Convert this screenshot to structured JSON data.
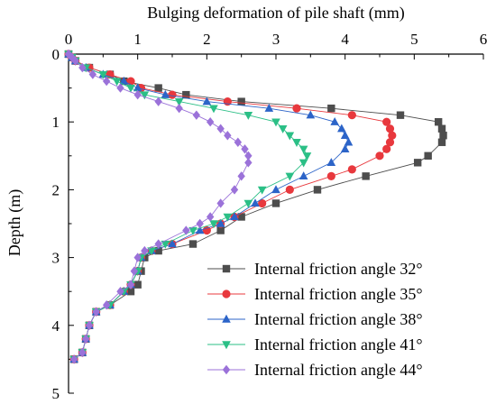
{
  "chart_data": {
    "type": "scatter",
    "title": "",
    "xlabel": "Bulging deformation of pile shaft (mm)",
    "ylabel": "Depth (m)",
    "xlim": [
      0,
      6
    ],
    "ylim": [
      0,
      5
    ],
    "x_axis_position": "top",
    "y_reversed": true,
    "xticks": [
      "0",
      "1",
      "2",
      "3",
      "4",
      "5",
      "6"
    ],
    "yticks": [
      "0",
      "1",
      "2",
      "3",
      "4",
      "5"
    ],
    "grid": false,
    "legend_position": "bottom-right",
    "series": [
      {
        "name": "Internal friction angle 32°",
        "color": "#4d4d4d",
        "marker": "square",
        "points": [
          [
            0.0,
            0.0
          ],
          [
            0.05,
            0.05
          ],
          [
            0.1,
            0.1
          ],
          [
            0.3,
            0.2
          ],
          [
            0.6,
            0.3
          ],
          [
            0.8,
            0.4
          ],
          [
            1.3,
            0.5
          ],
          [
            1.7,
            0.6
          ],
          [
            2.5,
            0.7
          ],
          [
            3.8,
            0.8
          ],
          [
            4.8,
            0.9
          ],
          [
            5.35,
            1.0
          ],
          [
            5.4,
            1.1
          ],
          [
            5.42,
            1.2
          ],
          [
            5.4,
            1.3
          ],
          [
            5.2,
            1.5
          ],
          [
            5.05,
            1.6
          ],
          [
            4.3,
            1.8
          ],
          [
            3.6,
            2.0
          ],
          [
            3.0,
            2.2
          ],
          [
            2.5,
            2.4
          ],
          [
            2.2,
            2.6
          ],
          [
            1.8,
            2.8
          ],
          [
            1.3,
            2.9
          ],
          [
            1.1,
            3.0
          ],
          [
            1.05,
            3.2
          ],
          [
            1.0,
            3.4
          ],
          [
            0.9,
            3.5
          ],
          [
            0.6,
            3.7
          ],
          [
            0.4,
            3.8
          ],
          [
            0.3,
            4.0
          ],
          [
            0.25,
            4.2
          ],
          [
            0.2,
            4.4
          ],
          [
            0.08,
            4.5
          ]
        ]
      },
      {
        "name": "Internal friction angle 35°",
        "color": "#e8383d",
        "marker": "circle",
        "points": [
          [
            0.0,
            0.0
          ],
          [
            0.05,
            0.05
          ],
          [
            0.1,
            0.1
          ],
          [
            0.3,
            0.2
          ],
          [
            0.6,
            0.3
          ],
          [
            0.9,
            0.4
          ],
          [
            1.05,
            0.5
          ],
          [
            1.5,
            0.6
          ],
          [
            2.3,
            0.7
          ],
          [
            3.3,
            0.8
          ],
          [
            4.1,
            0.9
          ],
          [
            4.6,
            1.0
          ],
          [
            4.65,
            1.1
          ],
          [
            4.68,
            1.2
          ],
          [
            4.65,
            1.3
          ],
          [
            4.6,
            1.4
          ],
          [
            4.5,
            1.5
          ],
          [
            4.1,
            1.7
          ],
          [
            3.8,
            1.8
          ],
          [
            3.2,
            2.0
          ],
          [
            2.8,
            2.2
          ],
          [
            2.4,
            2.4
          ],
          [
            2.2,
            2.5
          ],
          [
            2.0,
            2.6
          ],
          [
            1.5,
            2.8
          ],
          [
            1.2,
            2.9
          ],
          [
            1.05,
            3.0
          ],
          [
            1.0,
            3.2
          ],
          [
            0.9,
            3.4
          ],
          [
            0.8,
            3.5
          ],
          [
            0.6,
            3.7
          ],
          [
            0.4,
            3.8
          ],
          [
            0.3,
            4.0
          ],
          [
            0.25,
            4.2
          ],
          [
            0.2,
            4.4
          ],
          [
            0.08,
            4.5
          ]
        ]
      },
      {
        "name": "Internal friction angle 38°",
        "color": "#2c64c8",
        "marker": "triangle-up",
        "points": [
          [
            0.0,
            0.0
          ],
          [
            0.05,
            0.05
          ],
          [
            0.1,
            0.1
          ],
          [
            0.25,
            0.2
          ],
          [
            0.5,
            0.3
          ],
          [
            0.8,
            0.4
          ],
          [
            1.0,
            0.5
          ],
          [
            1.4,
            0.6
          ],
          [
            2.0,
            0.7
          ],
          [
            2.9,
            0.8
          ],
          [
            3.5,
            0.9
          ],
          [
            3.85,
            1.0
          ],
          [
            3.95,
            1.1
          ],
          [
            4.0,
            1.2
          ],
          [
            4.05,
            1.3
          ],
          [
            4.0,
            1.4
          ],
          [
            3.8,
            1.6
          ],
          [
            3.4,
            1.8
          ],
          [
            3.0,
            2.0
          ],
          [
            2.7,
            2.2
          ],
          [
            2.4,
            2.4
          ],
          [
            2.2,
            2.5
          ],
          [
            1.9,
            2.6
          ],
          [
            1.5,
            2.8
          ],
          [
            1.2,
            2.9
          ],
          [
            1.05,
            3.0
          ],
          [
            1.0,
            3.2
          ],
          [
            0.9,
            3.4
          ],
          [
            0.8,
            3.5
          ],
          [
            0.6,
            3.7
          ],
          [
            0.4,
            3.8
          ],
          [
            0.3,
            4.0
          ],
          [
            0.25,
            4.2
          ],
          [
            0.2,
            4.4
          ],
          [
            0.08,
            4.5
          ]
        ]
      },
      {
        "name": "Internal friction angle 41°",
        "color": "#2bbf86",
        "marker": "triangle-down",
        "points": [
          [
            0.0,
            0.0
          ],
          [
            0.05,
            0.05
          ],
          [
            0.1,
            0.1
          ],
          [
            0.25,
            0.2
          ],
          [
            0.5,
            0.3
          ],
          [
            0.7,
            0.4
          ],
          [
            0.9,
            0.5
          ],
          [
            1.1,
            0.6
          ],
          [
            1.6,
            0.7
          ],
          [
            2.1,
            0.8
          ],
          [
            2.6,
            0.9
          ],
          [
            3.0,
            1.0
          ],
          [
            3.1,
            1.1
          ],
          [
            3.2,
            1.2
          ],
          [
            3.3,
            1.3
          ],
          [
            3.4,
            1.4
          ],
          [
            3.45,
            1.5
          ],
          [
            3.4,
            1.6
          ],
          [
            3.2,
            1.8
          ],
          [
            2.8,
            2.0
          ],
          [
            2.6,
            2.2
          ],
          [
            2.3,
            2.4
          ],
          [
            2.1,
            2.5
          ],
          [
            1.8,
            2.6
          ],
          [
            1.4,
            2.8
          ],
          [
            1.2,
            2.9
          ],
          [
            1.05,
            3.0
          ],
          [
            1.0,
            3.2
          ],
          [
            0.9,
            3.4
          ],
          [
            0.8,
            3.5
          ],
          [
            0.6,
            3.7
          ],
          [
            0.4,
            3.8
          ],
          [
            0.3,
            4.0
          ],
          [
            0.25,
            4.2
          ],
          [
            0.2,
            4.4
          ],
          [
            0.08,
            4.5
          ]
        ]
      },
      {
        "name": "Internal friction angle 44°",
        "color": "#9b72d9",
        "marker": "diamond",
        "points": [
          [
            0.0,
            0.0
          ],
          [
            0.05,
            0.05
          ],
          [
            0.1,
            0.1
          ],
          [
            0.2,
            0.2
          ],
          [
            0.35,
            0.3
          ],
          [
            0.55,
            0.4
          ],
          [
            0.75,
            0.5
          ],
          [
            1.0,
            0.6
          ],
          [
            1.3,
            0.7
          ],
          [
            1.6,
            0.8
          ],
          [
            1.85,
            0.9
          ],
          [
            2.05,
            1.0
          ],
          [
            2.2,
            1.1
          ],
          [
            2.3,
            1.2
          ],
          [
            2.45,
            1.3
          ],
          [
            2.55,
            1.4
          ],
          [
            2.6,
            1.5
          ],
          [
            2.6,
            1.6
          ],
          [
            2.5,
            1.8
          ],
          [
            2.4,
            2.0
          ],
          [
            2.2,
            2.2
          ],
          [
            2.05,
            2.4
          ],
          [
            1.9,
            2.5
          ],
          [
            1.7,
            2.6
          ],
          [
            1.3,
            2.8
          ],
          [
            1.1,
            2.9
          ],
          [
            1.0,
            3.0
          ],
          [
            0.95,
            3.2
          ],
          [
            0.9,
            3.4
          ],
          [
            0.75,
            3.5
          ],
          [
            0.55,
            3.7
          ],
          [
            0.4,
            3.8
          ],
          [
            0.3,
            4.0
          ],
          [
            0.25,
            4.2
          ],
          [
            0.2,
            4.4
          ],
          [
            0.08,
            4.5
          ]
        ]
      }
    ]
  }
}
